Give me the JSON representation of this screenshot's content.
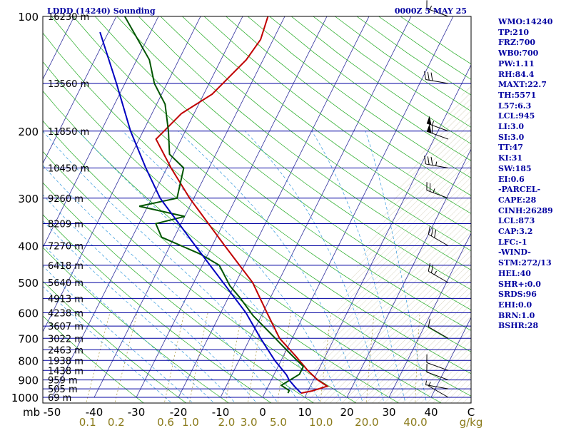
{
  "header": {
    "station": "LDDD (14240) Sounding",
    "time": "0000Z  5 MAY 25"
  },
  "indices": [
    "WMO:14240",
    "TP:210",
    "FRZ:700",
    "WB0:700",
    "PW:1.11",
    "RH:84.4",
    "MAXT:22.7",
    "TH:5571",
    "L57:6.3",
    "LCL:945",
    "LI:3.0",
    "SI:3.0",
    "TT:47",
    "KI:31",
    "SW:185",
    "EI:0.6",
    "-PARCEL-",
    "CAPE:28",
    "CINH:26289",
    "LCL:873",
    "CAP:3.2",
    "LFC:-1",
    "-WIND-",
    "STM:272/13",
    "HEL:40",
    "SHR+:0.0",
    "SRDS:96",
    "EHI:0.0",
    "BRN:1.0",
    "BSHR:28"
  ],
  "colors": {
    "isobar": "#0000a0",
    "isotherm": "#2a2a9a",
    "dry_adiabat": "#22aa22",
    "moist_adiabat": "#3399dd",
    "mixing_ratio": "#a09030",
    "temperature": "#c00000",
    "dewpoint": "#005500",
    "parcel": "#0000c0"
  },
  "chart_data": {
    "type": "line",
    "title": "LDDD (14240) Sounding",
    "subtitle": "0000Z  5 MAY 25",
    "x_unit_label": "C",
    "x_ticks": [
      "-50",
      "-40",
      "-30",
      "-20",
      "-10",
      "0",
      "10",
      "20",
      "30",
      "40"
    ],
    "pressure_levels": [
      {
        "p": 100,
        "label": "100",
        "height": "16230 m"
      },
      {
        "p": 200,
        "label": "200",
        "height": "11850 m"
      },
      {
        "p": 300,
        "label": "300",
        "height": "9260 m"
      },
      {
        "p": 400,
        "label": "400",
        "height": "7270 m"
      },
      {
        "p": 500,
        "label": "500",
        "height": "5640 m"
      },
      {
        "p": 600,
        "label": "600",
        "height": "4238 m"
      },
      {
        "p": 700,
        "label": "700",
        "height": "3022 m"
      },
      {
        "p": 800,
        "label": "800",
        "height": "1938 m"
      },
      {
        "p": 900,
        "label": "900",
        "height": "959 m"
      },
      {
        "p": 1000,
        "label": "1000",
        "height": "69 m"
      }
    ],
    "extra_height_levels": [
      {
        "p": 150,
        "height": "13560 m"
      },
      {
        "p": 250,
        "height": "10450 m"
      },
      {
        "p": 350,
        "height": "8209 m"
      },
      {
        "p": 450,
        "height": "6418 m"
      },
      {
        "p": 550,
        "height": "4913 m"
      },
      {
        "p": 650,
        "height": "3607 m"
      },
      {
        "p": 750,
        "height": "2463 m"
      },
      {
        "p": 850,
        "height": "1438 m"
      },
      {
        "p": 950,
        "height": "505 m"
      }
    ],
    "mixing_ratio_unit": "g/kg",
    "mixing_ratio_labels": [
      {
        "w": 0.1,
        "label": "0.1"
      },
      {
        "w": 0.2,
        "label": "0.2"
      },
      {
        "w": 0.6,
        "label": "0.6"
      },
      {
        "w": 1.0,
        "label": "1.0"
      },
      {
        "w": 2.0,
        "label": "2.0"
      },
      {
        "w": 3.0,
        "label": "3.0"
      },
      {
        "w": 5.0,
        "label": "5.0"
      },
      {
        "w": 10.0,
        "label": "10.0"
      },
      {
        "w": 20.0,
        "label": "20.0"
      },
      {
        "w": 40.0,
        "label": "40.0"
      }
    ],
    "series": [
      {
        "points": [
          {
            "p": 975,
            "t": 8.6
          },
          {
            "p": 962,
            "t": 11.0
          },
          {
            "p": 935,
            "t": 14.0
          },
          {
            "p": 900,
            "t": 11.0
          },
          {
            "p": 850,
            "t": 7.5
          },
          {
            "p": 780,
            "t": 3.0
          },
          {
            "p": 700,
            "t": -3.0
          },
          {
            "p": 600,
            "t": -9.0
          },
          {
            "p": 500,
            "t": -16.0
          },
          {
            "p": 400,
            "t": -27.0
          },
          {
            "p": 300,
            "t": -41.0
          },
          {
            "p": 250,
            "t": -49.0
          },
          {
            "p": 210,
            "t": -56.0
          },
          {
            "p": 180,
            "t": -53.0
          },
          {
            "p": 160,
            "t": -48.0
          },
          {
            "p": 130,
            "t": -44.0
          },
          {
            "p": 115,
            "t": -43.0
          },
          {
            "p": 100,
            "t": -44.0
          }
        ]
      },
      {
        "points": [
          {
            "p": 975,
            "t": 5.5
          },
          {
            "p": 960,
            "t": 5.5
          },
          {
            "p": 930,
            "t": 3.0
          },
          {
            "p": 870,
            "t": 6.0
          },
          {
            "p": 830,
            "t": 6.0
          },
          {
            "p": 770,
            "t": 1.5
          },
          {
            "p": 700,
            "t": -4.0
          },
          {
            "p": 610,
            "t": -12.0
          },
          {
            "p": 550,
            "t": -17.0
          },
          {
            "p": 510,
            "t": -21.0
          },
          {
            "p": 450,
            "t": -26.0
          },
          {
            "p": 420,
            "t": -32.0
          },
          {
            "p": 380,
            "t": -43.0
          },
          {
            "p": 350,
            "t": -46.0
          },
          {
            "p": 335,
            "t": -40.0
          },
          {
            "p": 315,
            "t": -52.0
          },
          {
            "p": 300,
            "t": -44.0
          },
          {
            "p": 250,
            "t": -46.0
          },
          {
            "p": 230,
            "t": -51.0
          },
          {
            "p": 200,
            "t": -54.0
          },
          {
            "p": 170,
            "t": -58.0
          },
          {
            "p": 150,
            "t": -63.0
          },
          {
            "p": 130,
            "t": -67.0
          },
          {
            "p": 110,
            "t": -74.0
          },
          {
            "p": 100,
            "t": -78.0
          }
        ]
      },
      {
        "points": [
          {
            "p": 975,
            "t": 8.6
          },
          {
            "p": 940,
            "t": 6.5
          },
          {
            "p": 900,
            "t": 4.2
          },
          {
            "p": 873,
            "t": 3.0
          },
          {
            "p": 800,
            "t": -1.5
          },
          {
            "p": 700,
            "t": -7.5
          },
          {
            "p": 600,
            "t": -14.0
          },
          {
            "p": 500,
            "t": -23.0
          },
          {
            "p": 400,
            "t": -34.0
          },
          {
            "p": 300,
            "t": -48.0
          },
          {
            "p": 250,
            "t": -55.0
          },
          {
            "p": 200,
            "t": -63.0
          },
          {
            "p": 150,
            "t": -72.0
          },
          {
            "p": 110,
            "t": -82.0
          }
        ]
      }
    ],
    "wind_barbs": [
      {
        "p": 100,
        "dir": 290,
        "spd": 15
      },
      {
        "p": 150,
        "dir": 280,
        "spd": 30
      },
      {
        "p": 200,
        "dir": 290,
        "spd": 55
      },
      {
        "p": 210,
        "dir": 290,
        "spd": 60
      },
      {
        "p": 250,
        "dir": 280,
        "spd": 35
      },
      {
        "p": 300,
        "dir": 290,
        "spd": 25
      },
      {
        "p": 400,
        "dir": 300,
        "spd": 30
      },
      {
        "p": 500,
        "dir": 300,
        "spd": 25
      },
      {
        "p": 700,
        "dir": 300,
        "spd": 10
      },
      {
        "p": 850,
        "dir": 290,
        "spd": 10
      },
      {
        "p": 900,
        "dir": 290,
        "spd": 10
      },
      {
        "p": 950,
        "dir": 280,
        "spd": 5
      },
      {
        "p": 1000,
        "dir": 300,
        "spd": 5
      }
    ]
  }
}
